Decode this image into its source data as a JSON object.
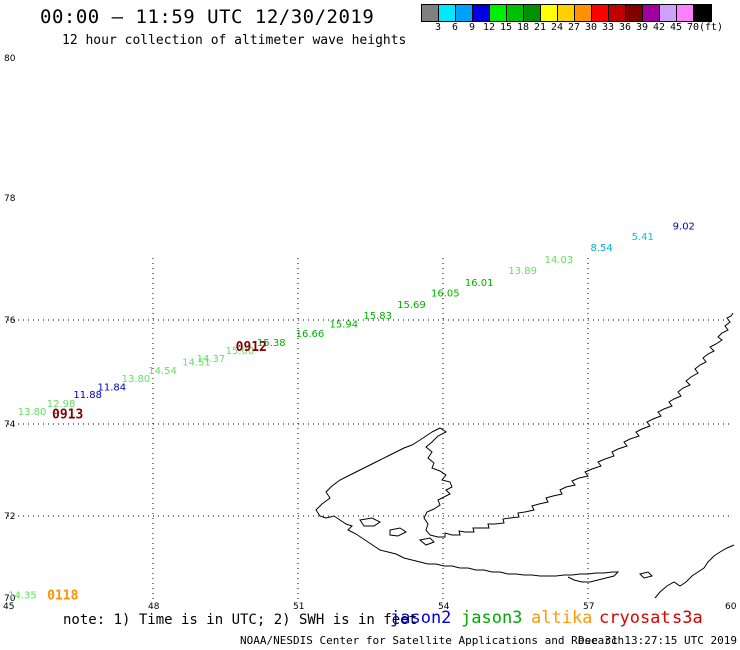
{
  "title": "00:00 – 11:59 UTC 12/30/2019",
  "subtitle": "12 hour collection of altimeter wave heights",
  "legend": {
    "unit": "(ft)",
    "swatches": [
      {
        "label": "3",
        "color": "#808080"
      },
      {
        "label": "6",
        "color": "#00e8ff"
      },
      {
        "label": "9",
        "color": "#00a0ff"
      },
      {
        "label": "12",
        "color": "#0000e0"
      },
      {
        "label": "15",
        "color": "#00ee00"
      },
      {
        "label": "18",
        "color": "#00c000"
      },
      {
        "label": "21",
        "color": "#009000"
      },
      {
        "label": "24",
        "color": "#ffff00"
      },
      {
        "label": "27",
        "color": "#ffd000"
      },
      {
        "label": "30",
        "color": "#ff9000"
      },
      {
        "label": "33",
        "color": "#ff0000"
      },
      {
        "label": "36",
        "color": "#c00000"
      },
      {
        "label": "39",
        "color": "#800000"
      },
      {
        "label": "42",
        "color": "#a000a0"
      },
      {
        "label": "45",
        "color": "#d0a0ff"
      },
      {
        "label": "70",
        "color": "#ff80ff"
      },
      {
        "label": "",
        "color": "#000000"
      }
    ]
  },
  "axes": {
    "lat_labels": [
      "80",
      "78",
      "76",
      "74",
      "72",
      "70"
    ],
    "lon_labels": [
      "45",
      "48",
      "51",
      "54",
      "57",
      "60"
    ]
  },
  "wave_heights": [
    {
      "text": "9.02",
      "color": "#0000c0",
      "lon": 59.0,
      "lat": 77.55
    },
    {
      "text": "5.41",
      "color": "#00c8d8",
      "lon": 58.15,
      "lat": 77.38
    },
    {
      "text": "8.54",
      "color": "#00b0d0",
      "lon": 57.3,
      "lat": 77.2
    },
    {
      "text": "14.03",
      "color": "#60e060",
      "lon": 56.35,
      "lat": 77.0
    },
    {
      "text": "13.89",
      "color": "#60e060",
      "lon": 55.6,
      "lat": 76.82
    },
    {
      "text": "16.01",
      "color": "#00b000",
      "lon": 54.7,
      "lat": 76.62
    },
    {
      "text": "16.05",
      "color": "#00b000",
      "lon": 54.0,
      "lat": 76.45
    },
    {
      "text": "15.69",
      "color": "#00b000",
      "lon": 53.3,
      "lat": 76.26
    },
    {
      "text": "15.83",
      "color": "#00b000",
      "lon": 52.6,
      "lat": 76.08
    },
    {
      "text": "15.94",
      "color": "#00b000",
      "lon": 51.9,
      "lat": 75.93
    },
    {
      "text": "16.66",
      "color": "#00b000",
      "lon": 51.2,
      "lat": 75.75
    },
    {
      "text": "15.38",
      "color": "#00b000",
      "lon": 50.4,
      "lat": 75.58
    },
    {
      "text": "15.00",
      "color": "#60e060",
      "lon": 49.75,
      "lat": 75.42
    },
    {
      "text": "14.37",
      "color": "#60e060",
      "lon": 49.15,
      "lat": 75.27
    },
    {
      "text": "14.51",
      "color": "#60e060",
      "lon": 48.85,
      "lat": 75.2
    },
    {
      "text": "14.54",
      "color": "#60e060",
      "lon": 48.15,
      "lat": 75.04
    },
    {
      "text": "13.80",
      "color": "#60e060",
      "lon": 47.6,
      "lat": 74.88
    },
    {
      "text": "11.84",
      "color": "#0000c0",
      "lon": 47.1,
      "lat": 74.72
    },
    {
      "text": "11.88",
      "color": "#0000c0",
      "lon": 46.6,
      "lat": 74.58
    },
    {
      "text": "12.98",
      "color": "#60e060",
      "lon": 46.05,
      "lat": 74.4
    },
    {
      "text": "13.80",
      "color": "#60e060",
      "lon": 45.45,
      "lat": 74.25
    },
    {
      "text": "14.35",
      "color": "#60e060",
      "lon": 45.25,
      "lat": 70.08
    }
  ],
  "pass_labels": [
    {
      "text": "0912",
      "color": "#800000",
      "lon": 50.0,
      "lat": 75.5
    },
    {
      "text": "0913",
      "color": "#800000",
      "lon": 46.2,
      "lat": 74.2
    },
    {
      "text": "0118",
      "color": "#ff9000",
      "lon": 46.1,
      "lat": 70.08
    }
  ],
  "footer": {
    "note": "note: 1) Time is in UTC; 2) SWH is in feet",
    "satellites": [
      {
        "name": "jason2",
        "color": "#0000dd"
      },
      {
        "name": "jason3",
        "color": "#00aa00"
      },
      {
        "name": "altika",
        "color": "#ff9900"
      },
      {
        "name": "cryosat",
        "color": "#dd0000"
      },
      {
        "name": "s3a",
        "color": "#cc0000"
      }
    ],
    "credit": "NOAA/NESDIS Center for Satellite Applications and Research",
    "timestamp": "Dec 31 13:27:15 UTC 2019"
  }
}
